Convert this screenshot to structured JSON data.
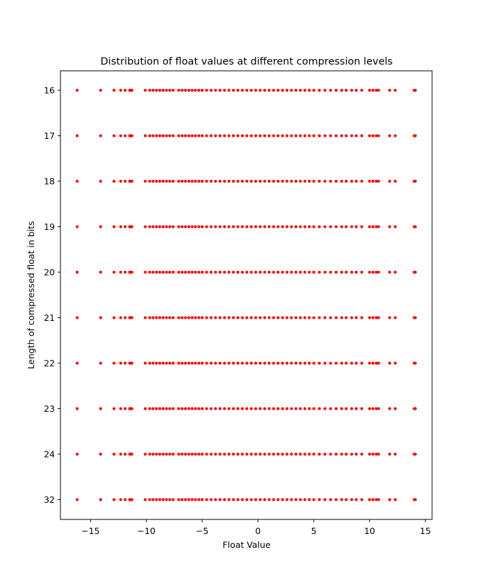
{
  "chart_data": {
    "type": "scatter",
    "title": "Distribution of float values at different compression levels",
    "xlabel": "Float Value",
    "ylabel": "Length of compressed float in bits",
    "xlim": [
      -17.7,
      15.6
    ],
    "xticks": [
      -15,
      -10,
      -5,
      0,
      5,
      10,
      15
    ],
    "categories": [
      "16",
      "17",
      "18",
      "19",
      "20",
      "21",
      "22",
      "23",
      "24",
      "32"
    ],
    "category_order": "top-to-bottom",
    "point_color": "#ff0000",
    "grid": false,
    "legend": "none",
    "x_values": [
      -16.2,
      -14.1,
      -12.9,
      -12.3,
      -11.9,
      -11.5,
      -11.4,
      -11.3,
      -10.1,
      -9.7,
      -9.4,
      -9.1,
      -8.8,
      -8.5,
      -8.2,
      -7.9,
      -7.6,
      -7.1,
      -6.8,
      -6.5,
      -6.2,
      -5.9,
      -5.6,
      -5.3,
      -5.0,
      -4.6,
      -4.2,
      -3.8,
      -3.4,
      -3.0,
      -2.6,
      -2.2,
      -1.8,
      -1.4,
      -1.0,
      -0.6,
      -0.2,
      0.2,
      0.6,
      1.0,
      1.4,
      1.8,
      2.2,
      2.6,
      3.0,
      3.4,
      3.8,
      4.2,
      4.6,
      5.0,
      5.5,
      6.0,
      6.5,
      7.0,
      7.5,
      7.9,
      8.4,
      8.8,
      9.3,
      10.0,
      10.3,
      10.6,
      10.8,
      11.8,
      12.3,
      14.0,
      14.1
    ]
  }
}
